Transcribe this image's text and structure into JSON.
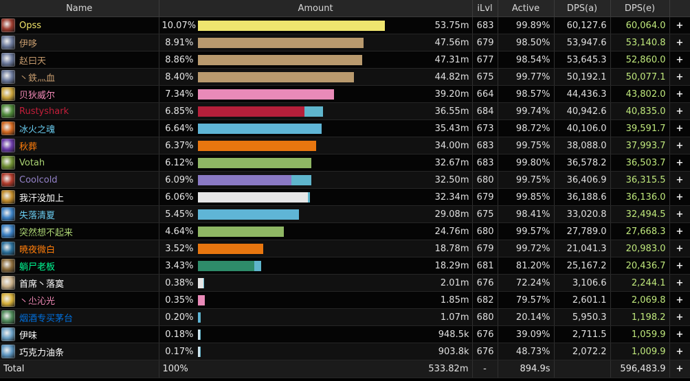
{
  "columns": {
    "name": "Name",
    "amount": "Amount",
    "ilvl": "iLvl",
    "active": "Active",
    "dps_a": "DPS(a)",
    "dps_e": "DPS(e)"
  },
  "plus_label": "+",
  "rows": [
    {
      "name": "Opss",
      "name_color": "#f2e66a",
      "bar_color": "#efe56f",
      "icon": "rogue-icon",
      "icon_color": "#9b3b2e",
      "pct": "10.07%",
      "bar_fraction": 1.0,
      "extra_fraction": 0.0,
      "amount": "53.75m",
      "ilvl": "683",
      "active": "99.89%",
      "dps_a": "60,127.6",
      "dps_e": "60,064.0"
    },
    {
      "name": "伊哆",
      "name_color": "#c79c6e",
      "bar_color": "#b99a6e",
      "icon": "warrior-icon",
      "icon_color": "#6c7a9c",
      "pct": "8.91%",
      "bar_fraction": 0.885,
      "extra_fraction": 0.0,
      "amount": "47.56m",
      "ilvl": "679",
      "active": "98.50%",
      "dps_a": "53,947.6",
      "dps_e": "53,140.8"
    },
    {
      "name": "赵曰天",
      "name_color": "#c79c6e",
      "bar_color": "#b99a6e",
      "icon": "warrior-icon",
      "icon_color": "#6c7a9c",
      "pct": "8.86%",
      "bar_fraction": 0.88,
      "extra_fraction": 0.0,
      "amount": "47.31m",
      "ilvl": "677",
      "active": "98.54%",
      "dps_a": "53,645.3",
      "dps_e": "52,860.0"
    },
    {
      "name": "丶鉄灬血",
      "name_color": "#c79c6e",
      "bar_color": "#b99a6e",
      "icon": "warrior-icon",
      "icon_color": "#6c7a9c",
      "pct": "8.40%",
      "bar_fraction": 0.834,
      "extra_fraction": 0.0,
      "amount": "44.82m",
      "ilvl": "675",
      "active": "99.77%",
      "dps_a": "50,192.1",
      "dps_e": "50,077.1"
    },
    {
      "name": "贝狄威尔",
      "name_color": "#f58cba",
      "bar_color": "#e98ab8",
      "icon": "paladin-icon",
      "icon_color": "#c8a23a",
      "pct": "7.34%",
      "bar_fraction": 0.729,
      "extra_fraction": 0.0,
      "amount": "39.20m",
      "ilvl": "664",
      "active": "98.57%",
      "dps_a": "44,436.3",
      "dps_e": "43,802.0"
    },
    {
      "name": "Rustyshark",
      "name_color": "#c41e3a",
      "bar_color": "#b51f3a",
      "icon": "death-knight-icon",
      "icon_color": "#4f8a3a",
      "pct": "6.85%",
      "bar_fraction": 0.57,
      "extra_fraction": 0.1,
      "amount": "36.55m",
      "ilvl": "684",
      "active": "99.74%",
      "dps_a": "40,942.6",
      "dps_e": "40,835.0"
    },
    {
      "name": "冰火之魂",
      "name_color": "#69ccf0",
      "bar_color": "#5fb5d6",
      "icon": "mage-icon",
      "icon_color": "#d0661e",
      "pct": "6.64%",
      "bar_fraction": 0.66,
      "extra_fraction": 0.0,
      "amount": "35.43m",
      "ilvl": "673",
      "active": "98.72%",
      "dps_a": "40,106.0",
      "dps_e": "39,591.7"
    },
    {
      "name": "秋葬",
      "name_color": "#ff7d0a",
      "bar_color": "#e8760f",
      "icon": "druid-icon",
      "icon_color": "#6a3aa8",
      "pct": "6.37%",
      "bar_fraction": 0.633,
      "extra_fraction": 0.0,
      "amount": "34.00m",
      "ilvl": "683",
      "active": "99.75%",
      "dps_a": "38,088.0",
      "dps_e": "37,993.7"
    },
    {
      "name": "Votah",
      "name_color": "#abd473",
      "bar_color": "#8fb764",
      "icon": "hunter-icon",
      "icon_color": "#6f8f33",
      "pct": "6.12%",
      "bar_fraction": 0.608,
      "extra_fraction": 0.0,
      "amount": "32.67m",
      "ilvl": "683",
      "active": "99.80%",
      "dps_a": "36,578.2",
      "dps_e": "36,503.7"
    },
    {
      "name": "Coolcold",
      "name_color": "#9482c9",
      "bar_color": "#8a79c4",
      "icon": "warlock-icon",
      "icon_color": "#b03a2a",
      "pct": "6.09%",
      "bar_fraction": 0.5,
      "extra_fraction": 0.105,
      "amount": "32.50m",
      "ilvl": "680",
      "active": "99.75%",
      "dps_a": "36,406.9",
      "dps_e": "36,315.5"
    },
    {
      "name": "我汗没加上",
      "name_color": "#ffffff",
      "bar_color": "#e6e6e6",
      "icon": "priest-icon",
      "icon_color": "#c08a2a",
      "pct": "6.06%",
      "bar_fraction": 0.588,
      "extra_fraction": 0.01,
      "amount": "32.34m",
      "ilvl": "679",
      "active": "99.85%",
      "dps_a": "36,188.6",
      "dps_e": "36,136.0"
    },
    {
      "name": "失落清夏",
      "name_color": "#69ccf0",
      "bar_color": "#5fb5d6",
      "icon": "mage-icon",
      "icon_color": "#3a7fc2",
      "pct": "5.45%",
      "bar_fraction": 0.541,
      "extra_fraction": 0.0,
      "amount": "29.08m",
      "ilvl": "675",
      "active": "98.41%",
      "dps_a": "33,020.8",
      "dps_e": "32,494.5"
    },
    {
      "name": "突然想不起来",
      "name_color": "#abd473",
      "bar_color": "#8fb764",
      "icon": "hunter-icon",
      "icon_color": "#3a7fc2",
      "pct": "4.64%",
      "bar_fraction": 0.461,
      "extra_fraction": 0.0,
      "amount": "24.76m",
      "ilvl": "680",
      "active": "99.57%",
      "dps_a": "27,789.0",
      "dps_e": "27,668.3"
    },
    {
      "name": "暁夜微白",
      "name_color": "#ff7d0a",
      "bar_color": "#e8760f",
      "icon": "druid-icon",
      "icon_color": "#2a6f9a",
      "pct": "3.52%",
      "bar_fraction": 0.35,
      "extra_fraction": 0.0,
      "amount": "18.78m",
      "ilvl": "679",
      "active": "99.72%",
      "dps_a": "21,041.3",
      "dps_e": "20,983.0"
    },
    {
      "name": "躺尸老板",
      "name_color": "#00ff96",
      "bar_color": "#2e8c6a",
      "icon": "monk-icon",
      "icon_color": "#8a6a3a",
      "pct": "3.43%",
      "bar_fraction": 0.3,
      "extra_fraction": 0.035,
      "amount": "18.29m",
      "ilvl": "681",
      "active": "81.20%",
      "dps_a": "25,167.2",
      "dps_e": "20,436.7"
    },
    {
      "name": "首席丶落寞",
      "name_color": "#ffffff",
      "bar_color": "#e6e6e6",
      "icon": "priest-icon",
      "icon_color": "#c9b08a",
      "pct": "0.38%",
      "bar_fraction": 0.03,
      "extra_fraction": 0.005,
      "amount": "2.01m",
      "ilvl": "676",
      "active": "72.24%",
      "dps_a": "3,106.6",
      "dps_e": "2,244.1"
    },
    {
      "name": "丶尐沁光",
      "name_color": "#f58cba",
      "bar_color": "#e98ab8",
      "icon": "paladin-icon",
      "icon_color": "#d6b03a",
      "pct": "0.35%",
      "bar_fraction": 0.035,
      "extra_fraction": 0.0,
      "amount": "1.85m",
      "ilvl": "682",
      "active": "79.57%",
      "dps_a": "2,601.1",
      "dps_e": "2,069.8"
    },
    {
      "name": "烟酒专买茅台",
      "name_color": "#0070de",
      "bar_color": "#5fb5d6",
      "icon": "shaman-icon",
      "icon_color": "#4f8a5a",
      "pct": "0.20%",
      "bar_fraction": 0.012,
      "extra_fraction": 0.005,
      "amount": "1.07m",
      "ilvl": "680",
      "active": "20.14%",
      "dps_a": "5,950.3",
      "dps_e": "1,198.2"
    },
    {
      "name": "伊味",
      "name_color": "#ffffff",
      "bar_color": "#cfe3ea",
      "icon": "frost-icon",
      "icon_color": "#6a9fc4",
      "pct": "0.18%",
      "bar_fraction": 0.01,
      "extra_fraction": 0.005,
      "amount": "948.5k",
      "ilvl": "676",
      "active": "39.09%",
      "dps_a": "2,711.5",
      "dps_e": "1,059.9"
    },
    {
      "name": "巧克力油条",
      "name_color": "#ffffff",
      "bar_color": "#cfe3ea",
      "icon": "frost-icon",
      "icon_color": "#5c95c0",
      "pct": "0.17%",
      "bar_fraction": 0.01,
      "extra_fraction": 0.005,
      "amount": "903.8k",
      "ilvl": "676",
      "active": "48.73%",
      "dps_a": "2,072.2",
      "dps_e": "1,009.9"
    }
  ],
  "total": {
    "label": "Total",
    "pct": "100%",
    "amount": "533.82m",
    "ilvl": "-",
    "active": "894.9s",
    "dps_a": "",
    "dps_e": "596,483.9"
  }
}
